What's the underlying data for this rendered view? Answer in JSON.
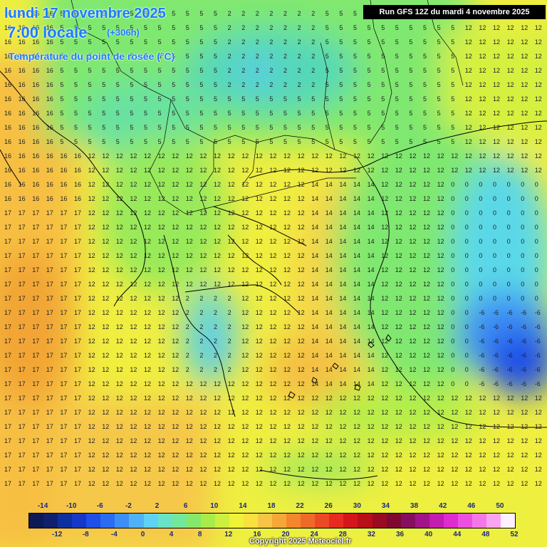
{
  "header": {
    "date_line": "lundi 17 novembre 2025",
    "time_line": "7:00 locale",
    "lead_time": "(+306h)",
    "parameter": "Température du point de rosée (°C)",
    "run_info": "Run GFS 12Z du mardi 4 novembre 2025"
  },
  "footer": {
    "copyright": "Copyright 2025 Meteociel.fr"
  },
  "scale": {
    "top_labels": [
      "-14",
      "-10",
      "-6",
      "-2",
      "2",
      "6",
      "10",
      "14",
      "18",
      "22",
      "26",
      "30",
      "34",
      "38",
      "42",
      "46",
      "50"
    ],
    "bottom_labels": [
      "-12",
      "-8",
      "-4",
      "0",
      "4",
      "8",
      "12",
      "16",
      "20",
      "24",
      "28",
      "32",
      "36",
      "40",
      "44",
      "48",
      "52"
    ],
    "colors": [
      "#0b1a55",
      "#10206e",
      "#0d2fa0",
      "#1538c8",
      "#1f4ee8",
      "#2b6cf2",
      "#3d8ff5",
      "#4fb2f6",
      "#5ed2f2",
      "#68e3c8",
      "#72e89a",
      "#86e86a",
      "#a8ec4a",
      "#cdf040",
      "#f0f238",
      "#f8e040",
      "#f7c545",
      "#f5a838",
      "#f2872e",
      "#ef6a28",
      "#ec4a24",
      "#e82a20",
      "#d4161c",
      "#b80f18",
      "#9a0a20",
      "#7e0830",
      "#860e60",
      "#a0148a",
      "#c21cb0",
      "#de2cd0",
      "#ec50e0",
      "#f278e8",
      "#f8a4f0",
      "#fff0ff"
    ]
  }
}
